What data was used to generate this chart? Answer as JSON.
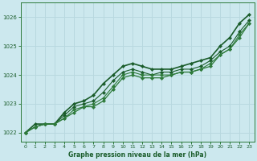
{
  "bg_color": "#cce8ee",
  "grid_color": "#b8d8df",
  "line_colors": [
    "#1a5c2a",
    "#1a5c2a",
    "#2d7a3a",
    "#2d7a3a"
  ],
  "xlabel": "Graphe pression niveau de la mer (hPa)",
  "xlim": [
    -0.5,
    23.5
  ],
  "ylim": [
    1021.7,
    1026.5
  ],
  "yticks": [
    1022,
    1023,
    1024,
    1025,
    1026
  ],
  "xticks": [
    0,
    1,
    2,
    3,
    4,
    5,
    6,
    7,
    8,
    9,
    10,
    11,
    12,
    13,
    14,
    15,
    16,
    17,
    18,
    19,
    20,
    21,
    22,
    23
  ],
  "series": [
    [
      1022.0,
      1022.3,
      1022.3,
      1022.3,
      1022.7,
      1023.0,
      1023.1,
      1023.3,
      1023.7,
      1024.0,
      1024.3,
      1024.4,
      1024.3,
      1024.2,
      1024.2,
      1024.2,
      1024.3,
      1024.4,
      1024.5,
      1024.6,
      1025.0,
      1025.3,
      1025.8,
      1026.1
    ],
    [
      1022.0,
      1022.2,
      1022.3,
      1022.3,
      1022.6,
      1022.9,
      1023.0,
      1023.1,
      1023.4,
      1023.8,
      1024.1,
      1024.2,
      1024.1,
      1024.0,
      1024.1,
      1024.1,
      1024.2,
      1024.2,
      1024.3,
      1024.5,
      1024.8,
      1025.0,
      1025.5,
      1025.9
    ],
    [
      1022.0,
      1022.2,
      1022.3,
      1022.3,
      1022.5,
      1022.8,
      1022.9,
      1023.0,
      1023.2,
      1023.6,
      1024.0,
      1024.1,
      1024.0,
      1024.0,
      1024.0,
      1024.0,
      1024.1,
      1024.1,
      1024.2,
      1024.4,
      1024.7,
      1024.9,
      1025.4,
      1025.8
    ],
    [
      1022.0,
      1022.2,
      1022.3,
      1022.3,
      1022.5,
      1022.7,
      1022.9,
      1022.9,
      1023.1,
      1023.5,
      1023.9,
      1024.0,
      1023.9,
      1023.9,
      1023.9,
      1024.0,
      1024.1,
      1024.1,
      1024.2,
      1024.3,
      1024.7,
      1024.9,
      1025.3,
      1025.8
    ]
  ],
  "marker": "D",
  "markersize": 2.2,
  "linewidths": [
    1.2,
    0.8,
    0.8,
    0.9
  ]
}
